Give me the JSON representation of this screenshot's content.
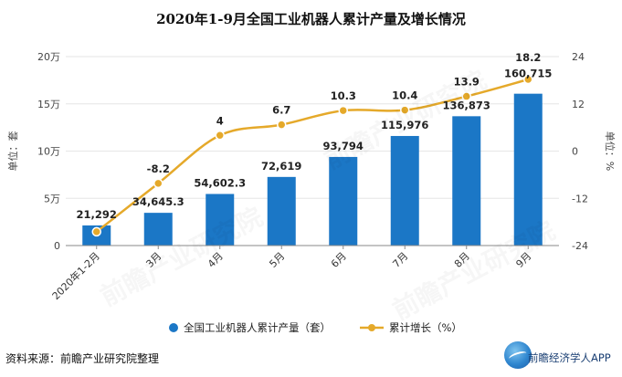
{
  "title": "2020年1-9月全国工业机器人累计产量及增长情况",
  "source": "资料来源：前瞻产业研究院整理",
  "brand": {
    "name": "前瞻经济学人APP"
  },
  "watermark": "前瞻产业研究院",
  "colors": {
    "bar": "#1b77c6",
    "line": "#e5a92a",
    "axis": "#555555",
    "grid": "#e6e6e6"
  },
  "chart_data": {
    "type": "bar",
    "categories": [
      "2020年1-2月",
      "3月",
      "4月",
      "5月",
      "6月",
      "7月",
      "8月",
      "9月"
    ],
    "series": [
      {
        "name": "全国工业机器人累计产量（套）",
        "type": "bar",
        "axis": "left",
        "values": [
          21292,
          34645.3,
          54602.3,
          72619,
          93794,
          115976,
          136873,
          160715
        ],
        "labels": [
          "21,292",
          "34,645.3",
          "54,602.3",
          "72,619",
          "93,794",
          "115,976",
          "136,873",
          "160,715"
        ]
      },
      {
        "name": "累计增长（%）",
        "type": "line",
        "axis": "right",
        "values": [
          -20.5,
          -8.2,
          4,
          6.7,
          10.3,
          10.4,
          13.9,
          18.2
        ],
        "labels": [
          "",
          "-8.2",
          "4",
          "6.7",
          "10.3",
          "10.4",
          "13.9",
          "18.2"
        ]
      }
    ],
    "y_left": {
      "label": "单位：套",
      "min": 0,
      "max": 200000,
      "ticks": [
        0,
        50000,
        100000,
        150000,
        200000
      ],
      "tick_labels": [
        "0",
        "5万",
        "10万",
        "15万",
        "20万"
      ]
    },
    "y_right": {
      "label": "单位：%",
      "min": -24,
      "max": 24,
      "ticks": [
        -24,
        -12,
        0,
        12,
        24
      ],
      "tick_labels": [
        "-24",
        "-12",
        "0",
        "12",
        "24"
      ]
    },
    "legend_position": "bottom-center",
    "grid": true
  }
}
